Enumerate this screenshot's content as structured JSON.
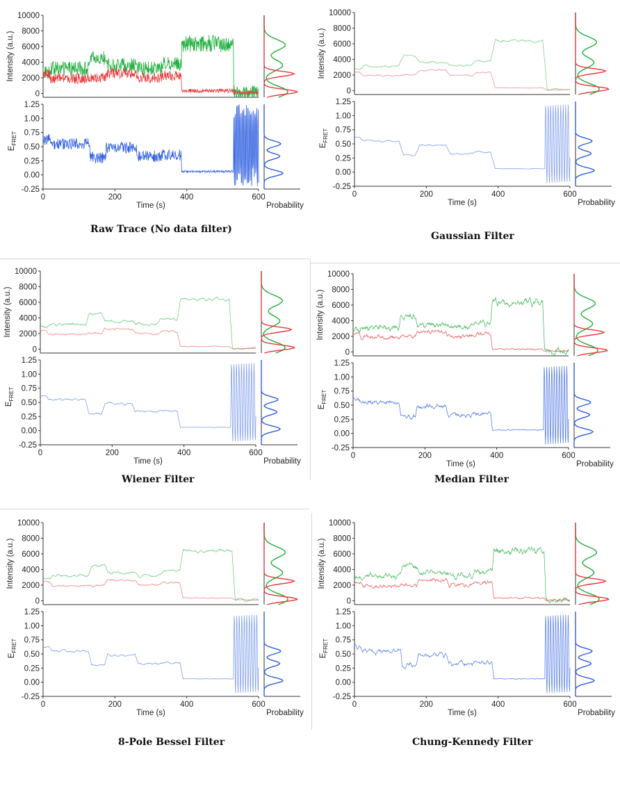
{
  "figure": {
    "common": {
      "x_axis": {
        "label": "Time (s)",
        "ticks": [
          "0",
          "200",
          "400",
          "600"
        ],
        "range": [
          0,
          600
        ]
      },
      "intensity_axis": {
        "label": "Intensity (a.u.)",
        "ticks": [
          "0",
          "2000",
          "4000",
          "6000",
          "8000",
          "10000"
        ],
        "range": [
          -500,
          10000
        ]
      },
      "efret_axis": {
        "label_main": "E",
        "label_sub": "FRET",
        "ticks": [
          "-0.25",
          "0.00",
          "0.25",
          "0.50",
          "0.75",
          "1.00",
          "1.25"
        ],
        "range": [
          -0.25,
          1.25
        ]
      },
      "hist_label": "Probability",
      "colors": {
        "donor": "#e8383a",
        "acceptor": "#1fae3c",
        "efret": "#2f5fe0"
      }
    },
    "panels": [
      {
        "caption": "Raw Trace (No data filter)",
        "smoothing": 0,
        "alpha": 1.0
      },
      {
        "caption": "Gaussian Filter",
        "smoothing": 3,
        "alpha": 0.55
      },
      {
        "caption": "Wiener Filter",
        "smoothing": 2,
        "alpha": 0.6
      },
      {
        "caption": "Median Filter",
        "smoothing": 1,
        "alpha": 0.8
      },
      {
        "caption": "8-Pole Bessel Filter",
        "smoothing": 2,
        "alpha": 0.6
      },
      {
        "caption": "Chung-Kennedy Filter",
        "smoothing": 1,
        "alpha": 0.75
      }
    ]
  },
  "chart_data": {
    "type": "line",
    "x_unit": "s",
    "series": [
      {
        "name": "",
        "color": "#1fae3c",
        "segments": [
          {
            "t": [
              0,
              20
            ],
            "value": 2800
          },
          {
            "t": [
              20,
              130
            ],
            "value": 3200
          },
          {
            "t": [
              130,
              175
            ],
            "value": 4500
          },
          {
            "t": [
              175,
              260
            ],
            "value": 3600
          },
          {
            "t": [
              260,
              330
            ],
            "value": 3200
          },
          {
            "t": [
              330,
              385
            ],
            "value": 3800
          },
          {
            "t": [
              385,
              530
            ],
            "value": 6400
          },
          {
            "t": [
              530,
              600
            ],
            "value": 100
          }
        ]
      },
      {
        "name": "",
        "color": "#e8383a",
        "segments": [
          {
            "t": [
              0,
              20
            ],
            "value": 2400
          },
          {
            "t": [
              20,
              130
            ],
            "value": 1900
          },
          {
            "t": [
              130,
              175
            ],
            "value": 2000
          },
          {
            "t": [
              175,
              260
            ],
            "value": 2600
          },
          {
            "t": [
              260,
              330
            ],
            "value": 2000
          },
          {
            "t": [
              330,
              385
            ],
            "value": 2300
          },
          {
            "t": [
              385,
              530
            ],
            "value": 350
          },
          {
            "t": [
              530,
              600
            ],
            "value": 100
          }
        ]
      },
      {
        "name": "",
        "color": "#2f5fe0",
        "segments": [
          {
            "t": [
              0,
              20
            ],
            "value": 0.62
          },
          {
            "t": [
              20,
              130
            ],
            "value": 0.55
          },
          {
            "t": [
              130,
              175
            ],
            "value": 0.3
          },
          {
            "t": [
              175,
              260
            ],
            "value": 0.48
          },
          {
            "t": [
              260,
              330
            ],
            "value": 0.33
          },
          {
            "t": [
              330,
              385
            ],
            "value": 0.35
          },
          {
            "t": [
              385,
              530
            ],
            "value": 0.06
          },
          {
            "t": [
              530,
              600
            ],
            "value": 0.5,
            "note": "oscillating between -0.25 and 1.25 after photobleaching"
          }
        ]
      }
    ],
    "histograms": {
      "acceptor_peaks_intensity": [
        200,
        3600,
        6200
      ],
      "donor_peaks_intensity": [
        200,
        2500
      ],
      "efret_peaks": [
        0.03,
        0.33,
        0.55
      ]
    },
    "xlim": [
      0,
      600
    ],
    "ylim_intensity": [
      -500,
      10000
    ],
    "ylim_efret": [
      -0.25,
      1.25
    ],
    "grid": false,
    "legend": "none"
  }
}
